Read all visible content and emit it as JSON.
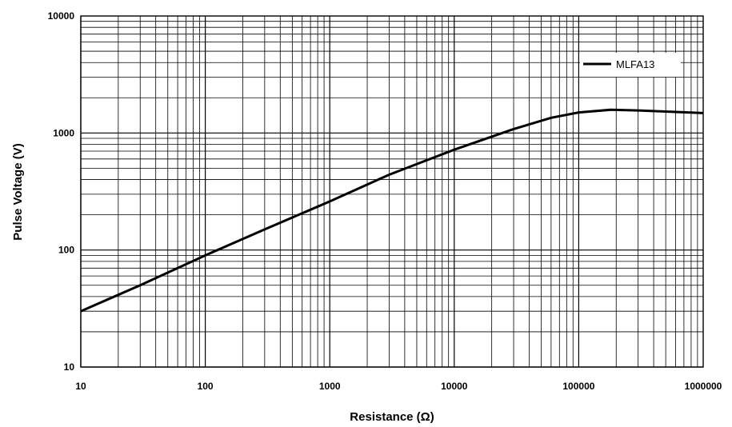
{
  "chart_data": {
    "type": "line",
    "xlabel": "Resistance (Ω)",
    "ylabel": "Pulse Voltage (V)",
    "x_scale": "log",
    "y_scale": "log",
    "xlim": [
      10,
      1000000
    ],
    "ylim": [
      10,
      10000
    ],
    "x_ticks": [
      "10",
      "100",
      "1000",
      "10000",
      "100000",
      "1000000"
    ],
    "y_ticks": [
      "10",
      "100",
      "1000",
      "10000"
    ],
    "grid": "major and minor (log)",
    "legend_position": "top-right",
    "series": [
      {
        "name": "MLFA13",
        "color": "#000000",
        "x": [
          10,
          30,
          100,
          300,
          1000,
          3000,
          10000,
          30000,
          60000,
          100000,
          180000,
          300000,
          1000000
        ],
        "y": [
          30,
          50,
          90,
          150,
          260,
          440,
          720,
          1080,
          1350,
          1500,
          1580,
          1560,
          1480
        ]
      }
    ]
  }
}
